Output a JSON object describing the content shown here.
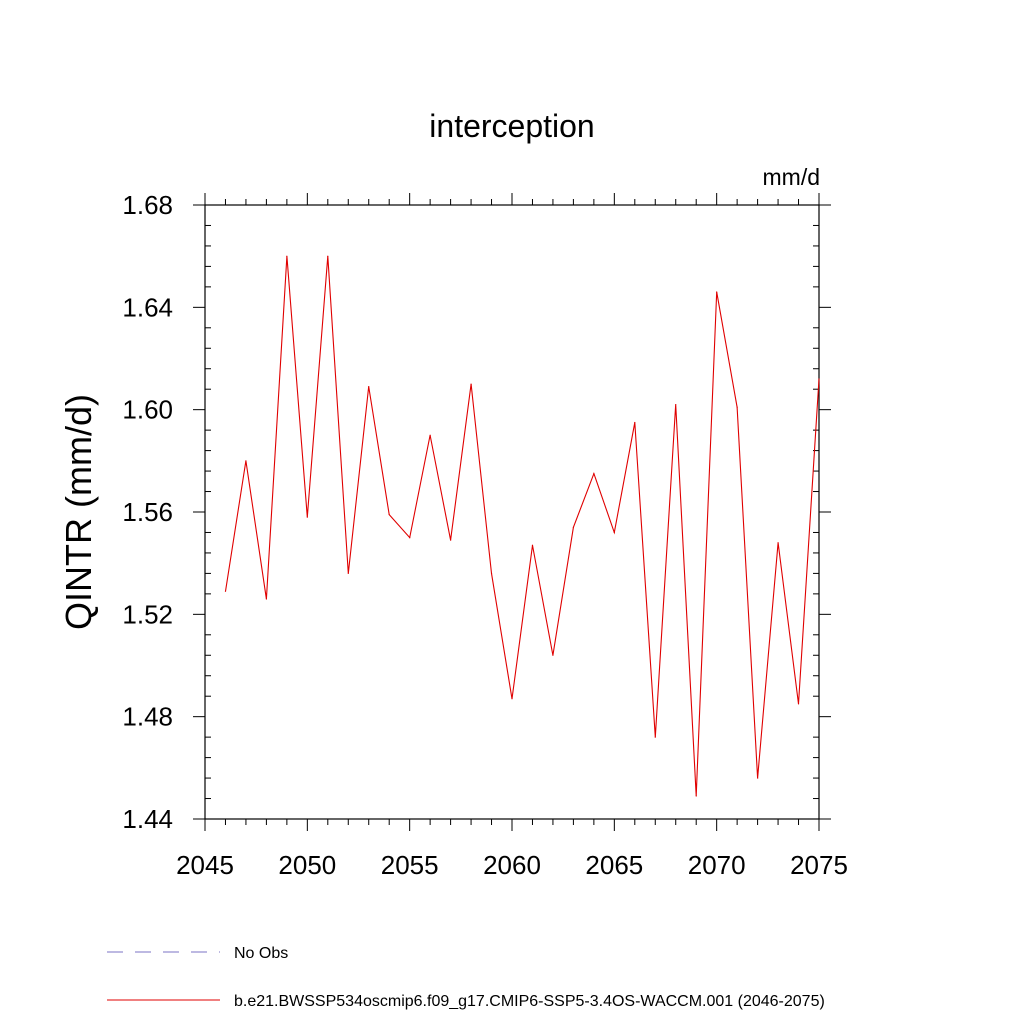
{
  "chart_data": {
    "type": "line",
    "title": "interception",
    "units": "mm/d",
    "xlabel": "",
    "ylabel": "QINTR  (mm/d)",
    "xlim": [
      2045,
      2075
    ],
    "ylim": [
      1.44,
      1.68
    ],
    "xticks": [
      2045,
      2050,
      2055,
      2060,
      2065,
      2070,
      2075
    ],
    "xtick_labels": [
      "2045",
      "2050",
      "2055",
      "2060",
      "2065",
      "2070",
      "2075"
    ],
    "yticks": [
      1.44,
      1.48,
      1.52,
      1.56,
      1.6,
      1.64,
      1.68
    ],
    "ytick_labels": [
      "1.44",
      "1.48",
      "1.52",
      "1.56",
      "1.60",
      "1.64",
      "1.68"
    ],
    "grid": false,
    "legend_position": "bottom-left",
    "series": [
      {
        "name": "b.e21.BWSSP534oscmip6.f09_g17.CMIP6-SSP5-3.4OS-WACCM.001 (2046-2075)",
        "color": "#e00000",
        "style": "solid",
        "x": [
          2046,
          2047,
          2048,
          2049,
          2050,
          2051,
          2052,
          2053,
          2054,
          2055,
          2056,
          2057,
          2058,
          2059,
          2060,
          2061,
          2062,
          2063,
          2064,
          2065,
          2066,
          2067,
          2068,
          2069,
          2070,
          2071,
          2072,
          2073,
          2074,
          2075
        ],
        "values": [
          1.529,
          1.58,
          1.526,
          1.66,
          1.558,
          1.66,
          1.536,
          1.609,
          1.559,
          1.55,
          1.59,
          1.549,
          1.61,
          1.536,
          1.487,
          1.547,
          1.504,
          1.554,
          1.575,
          1.552,
          1.595,
          1.472,
          1.602,
          1.449,
          1.646,
          1.601,
          1.456,
          1.548,
          1.485,
          1.612
        ]
      }
    ],
    "legend": [
      {
        "label": "No Obs",
        "color": "#7b73c4",
        "style": "dashed"
      },
      {
        "label": "b.e21.BWSSP534oscmip6.f09_g17.CMIP6-SSP5-3.4OS-WACCM.001 (2046-2075)",
        "color": "#e00000",
        "style": "solid"
      }
    ]
  }
}
